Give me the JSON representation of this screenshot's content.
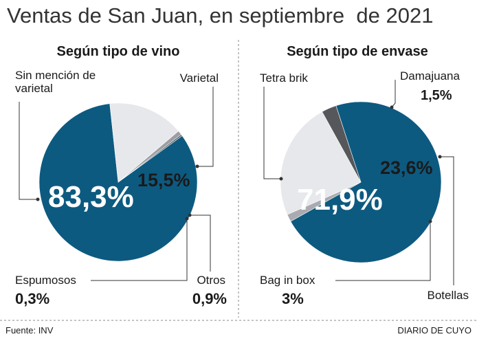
{
  "title": "Ventas de San Juan, en septiembre  de 2021",
  "chart_data": [
    {
      "type": "pie",
      "title": "Según tipo de vino",
      "categories": [
        "Sin mención de varietal",
        "Varietal",
        "Otros",
        "Espumosos"
      ],
      "values": [
        83.3,
        15.5,
        0.9,
        0.3
      ],
      "value_labels": [
        "83,3%",
        "15,5%",
        "0,9%",
        "0,3%"
      ],
      "colors": [
        "#0d5a80",
        "#e7e8ec",
        "#9c9ea3",
        "#55575b"
      ]
    },
    {
      "type": "pie",
      "title": "Según tipo de envase",
      "categories": [
        "Tetra brik",
        "Damajuana",
        "Botellas",
        "Bag in box"
      ],
      "values": [
        71.9,
        1.5,
        23.6,
        3
      ],
      "value_labels": [
        "71,9%",
        "1,5%",
        "23,6%",
        "3%"
      ],
      "colors": [
        "#0d5a80",
        "#a9abb0",
        "#e7e8ec",
        "#55575b"
      ]
    }
  ],
  "source": "Fuente: INV",
  "credit": "DIARIO DE CUYO"
}
